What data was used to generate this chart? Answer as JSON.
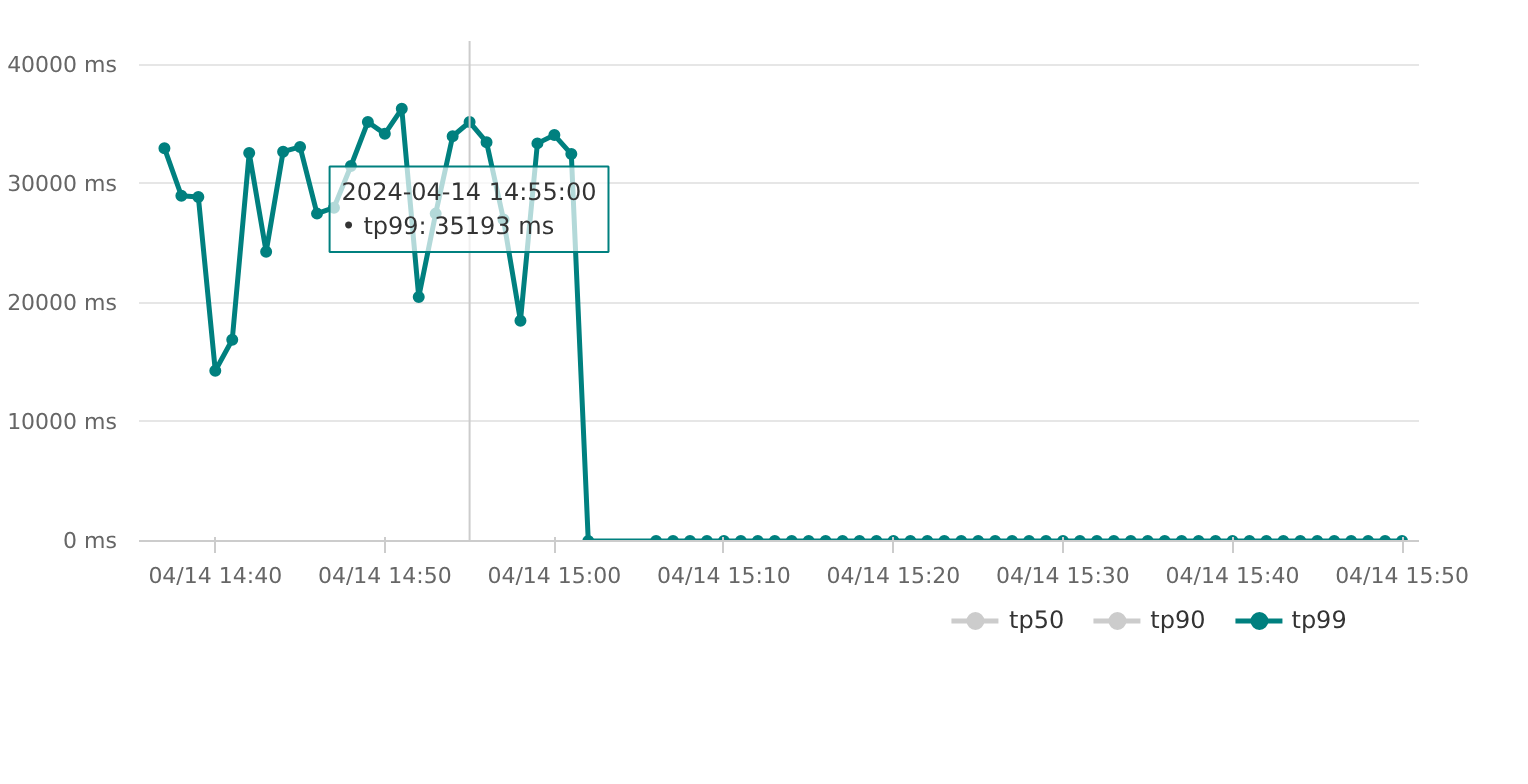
{
  "chart_data": {
    "type": "line",
    "marker": "circle",
    "grid": "y",
    "legend": "bottom right",
    "x": [
      "2024-04-14T14:37",
      "2024-04-14T14:38",
      "2024-04-14T14:39",
      "2024-04-14T14:40",
      "2024-04-14T14:41",
      "2024-04-14T14:42",
      "2024-04-14T14:43",
      "2024-04-14T14:44",
      "2024-04-14T14:45",
      "2024-04-14T14:46",
      "2024-04-14T14:47",
      "2024-04-14T14:48",
      "2024-04-14T14:49",
      "2024-04-14T14:50",
      "2024-04-14T14:51",
      "2024-04-14T14:52",
      "2024-04-14T14:53",
      "2024-04-14T14:54",
      "2024-04-14T14:55",
      "2024-04-14T14:56",
      "2024-04-14T14:57",
      "2024-04-14T14:58",
      "2024-04-14T14:59",
      "2024-04-14T15:00",
      "2024-04-14T15:01",
      "2024-04-14T15:02",
      "2024-04-14T15:06",
      "2024-04-14T15:07",
      "2024-04-14T15:08",
      "2024-04-14T15:09",
      "2024-04-14T15:10",
      "2024-04-14T15:11",
      "2024-04-14T15:12",
      "2024-04-14T15:13",
      "2024-04-14T15:14",
      "2024-04-14T15:15",
      "2024-04-14T15:16",
      "2024-04-14T15:17",
      "2024-04-14T15:18",
      "2024-04-14T15:19",
      "2024-04-14T15:20",
      "2024-04-14T15:21",
      "2024-04-14T15:22",
      "2024-04-14T15:23",
      "2024-04-14T15:24",
      "2024-04-14T15:25",
      "2024-04-14T15:26",
      "2024-04-14T15:27",
      "2024-04-14T15:28",
      "2024-04-14T15:29",
      "2024-04-14T15:30",
      "2024-04-14T15:31",
      "2024-04-14T15:32",
      "2024-04-14T15:33",
      "2024-04-14T15:34",
      "2024-04-14T15:35",
      "2024-04-14T15:36",
      "2024-04-14T15:37",
      "2024-04-14T15:38",
      "2024-04-14T15:39",
      "2024-04-14T15:40",
      "2024-04-14T15:41",
      "2024-04-14T15:42",
      "2024-04-14T15:43",
      "2024-04-14T15:44",
      "2024-04-14T15:45",
      "2024-04-14T15:46",
      "2024-04-14T15:47",
      "2024-04-14T15:48",
      "2024-04-14T15:49",
      "2024-04-14T15:50"
    ],
    "series": [
      {
        "name": "tp50",
        "color": "#cccccc",
        "values": [
          null,
          null,
          null,
          null,
          null,
          null,
          null,
          null,
          null,
          null,
          null,
          null,
          null,
          null,
          null,
          null,
          null,
          null,
          null,
          null,
          null,
          null,
          null,
          null,
          null,
          null,
          null,
          null,
          null,
          null,
          null,
          null,
          null,
          null,
          null,
          null,
          null,
          null,
          null,
          null,
          null,
          null,
          null,
          null,
          null,
          null,
          null,
          null,
          null,
          null,
          null,
          null,
          null,
          null,
          null,
          null,
          null,
          null,
          null,
          null,
          null,
          null,
          null,
          null,
          null,
          null,
          null,
          null,
          null,
          null,
          null
        ]
      },
      {
        "name": "tp90",
        "color": "#cccccc",
        "values": [
          null,
          null,
          null,
          null,
          null,
          null,
          null,
          null,
          null,
          null,
          null,
          null,
          null,
          null,
          null,
          null,
          null,
          null,
          null,
          null,
          null,
          null,
          null,
          null,
          null,
          null,
          null,
          null,
          null,
          null,
          null,
          null,
          null,
          null,
          null,
          null,
          null,
          null,
          null,
          null,
          null,
          null,
          null,
          null,
          null,
          null,
          null,
          null,
          null,
          null,
          null,
          null,
          null,
          null,
          null,
          null,
          null,
          null,
          null,
          null,
          null,
          null,
          null,
          null,
          null,
          null,
          null,
          null,
          null,
          null,
          null
        ]
      },
      {
        "name": "tp99",
        "color": "#00807f",
        "values": [
          33000,
          29000,
          28900,
          14300,
          16900,
          32600,
          24300,
          32700,
          33100,
          27500,
          28000,
          31500,
          35200,
          34200,
          36300,
          20500,
          27500,
          34000,
          35193,
          33500,
          27000,
          18500,
          33400,
          34100,
          32500,
          0,
          0,
          0,
          0,
          0,
          0,
          0,
          0,
          0,
          0,
          0,
          0,
          0,
          0,
          0,
          0,
          0,
          0,
          0,
          0,
          0,
          0,
          0,
          0,
          0,
          0,
          0,
          0,
          0,
          0,
          0,
          0,
          0,
          0,
          0,
          0,
          0,
          0,
          0,
          0,
          0,
          0,
          0,
          0,
          0,
          0
        ]
      }
    ],
    "xlim": [
      "2024-04-14T14:35:30",
      "2024-04-14T15:51:00"
    ],
    "xticks": [
      {
        "value": "2024-04-14T14:40",
        "label": "04/14 14:40"
      },
      {
        "value": "2024-04-14T14:50",
        "label": "04/14 14:50"
      },
      {
        "value": "2024-04-14T15:00",
        "label": "04/14 15:00"
      },
      {
        "value": "2024-04-14T15:10",
        "label": "04/14 15:10"
      },
      {
        "value": "2024-04-14T15:20",
        "label": "04/14 15:20"
      },
      {
        "value": "2024-04-14T15:30",
        "label": "04/14 15:30"
      },
      {
        "value": "2024-04-14T15:40",
        "label": "04/14 15:40"
      },
      {
        "value": "2024-04-14T15:50",
        "label": "04/14 15:50"
      }
    ],
    "ylim": [
      0,
      42000
    ],
    "yticks": [
      {
        "value": 0,
        "label": "0 ms"
      },
      {
        "value": 10000,
        "label": "10000 ms"
      },
      {
        "value": 20000,
        "label": "20000 ms"
      },
      {
        "value": 30000,
        "label": "30000 ms"
      },
      {
        "value": 40000,
        "label": "40000 ms"
      }
    ],
    "ref_lines": [
      {
        "axis": "x",
        "value": "2024-04-14T14:55",
        "color": "#cccccc"
      }
    ],
    "annotations": [
      {
        "text": "2024-04-14 14:55:00\n• tp99: 35193 ms",
        "x": "2024-04-14T14:55",
        "y": 35193
      }
    ]
  }
}
